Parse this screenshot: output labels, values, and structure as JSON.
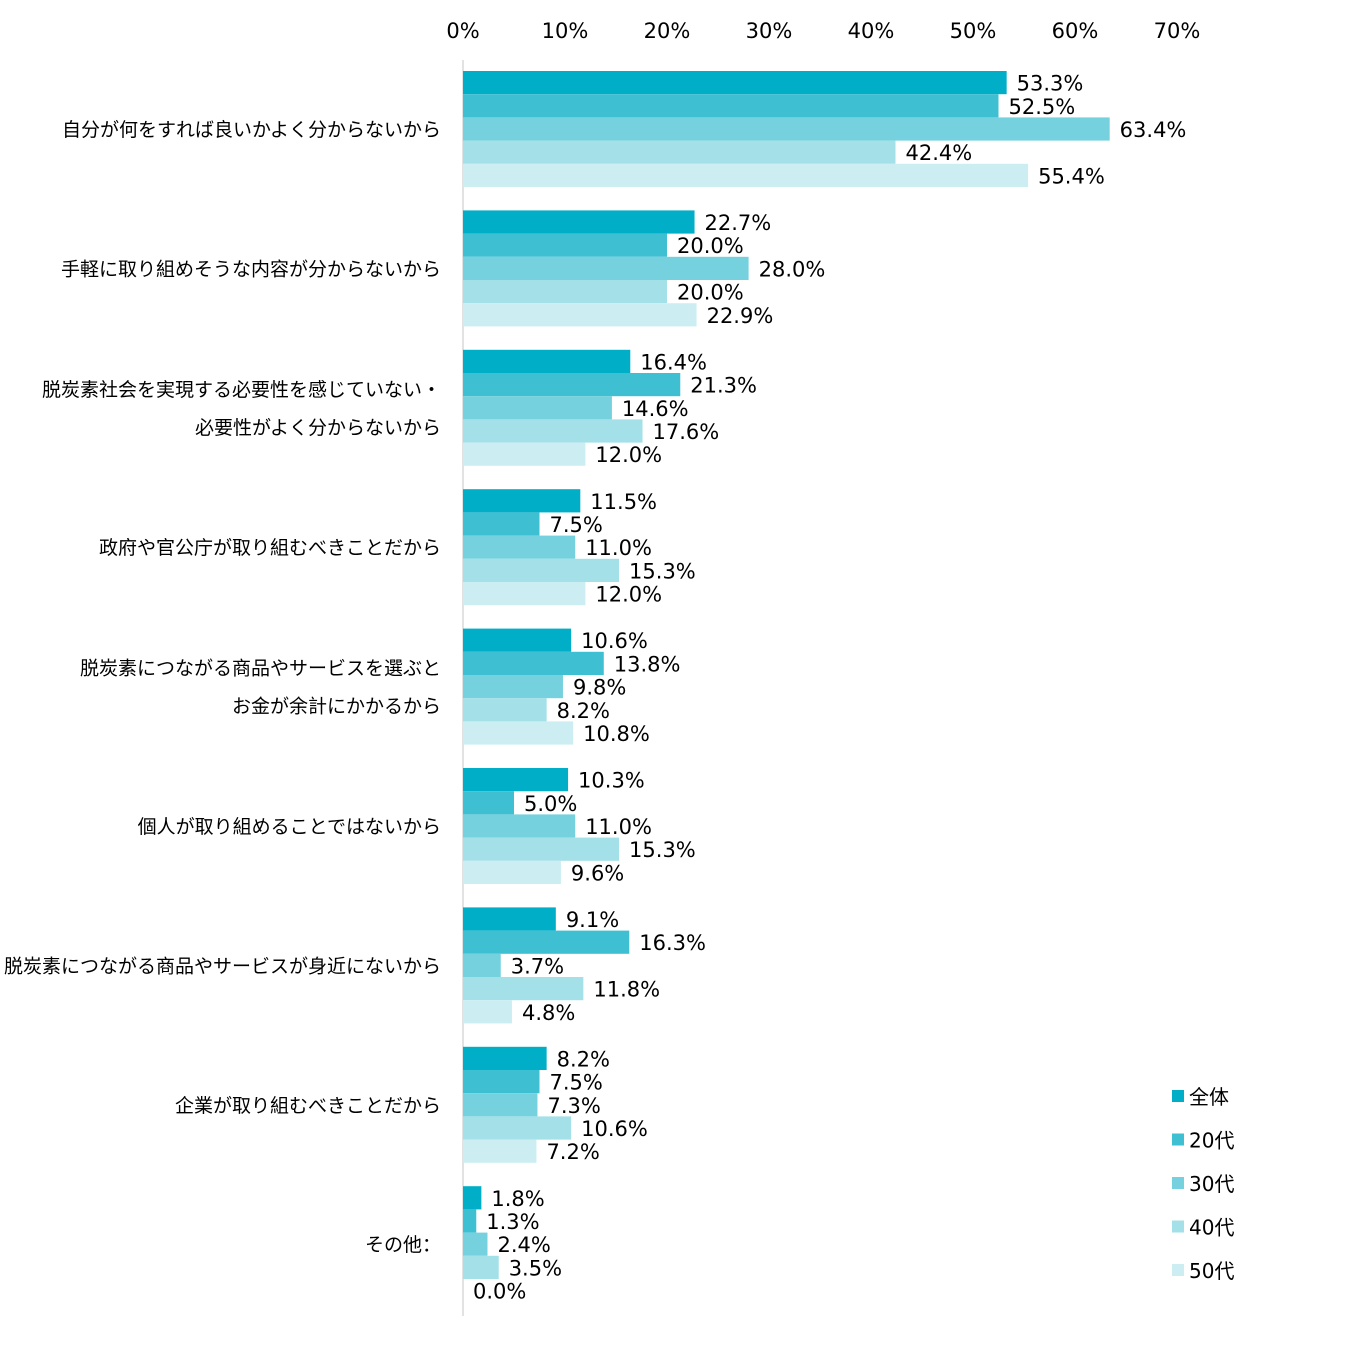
{
  "chart_data": {
    "type": "bar",
    "orientation": "horizontal",
    "xlim": [
      0,
      70
    ],
    "x_ticks": [
      "0%",
      "10%",
      "20%",
      "30%",
      "40%",
      "50%",
      "60%",
      "70%"
    ],
    "tick_values": [
      0,
      10,
      20,
      30,
      40,
      50,
      60,
      70
    ],
    "grid": false,
    "legend_position": "bottom-right",
    "categories": [
      [
        "自分が何をすれば良いかよく分からないから"
      ],
      [
        "手軽に取り組めそうな内容が分からないから"
      ],
      [
        "脱炭素社会を実現する必要性を感じていない・",
        "必要性がよく分からないから"
      ],
      [
        "政府や官公庁が取り組むべきことだから"
      ],
      [
        "脱炭素につながる商品やサービスを選ぶと",
        "お金が余計にかかるから"
      ],
      [
        "個人が取り組めることではないから"
      ],
      [
        "脱炭素につながる商品やサービスが身近にないから"
      ],
      [
        "企業が取り組むべきことだから"
      ],
      [
        "その他："
      ]
    ],
    "series": [
      {
        "name": "全体",
        "color": "#00AEC7",
        "values": [
          53.3,
          22.7,
          16.4,
          11.5,
          10.6,
          10.3,
          9.1,
          8.2,
          1.8
        ],
        "labels": [
          "53.3%",
          "22.7%",
          "16.4%",
          "11.5%",
          "10.6%",
          "10.3%",
          "9.1%",
          "8.2%",
          "1.8%"
        ]
      },
      {
        "name": "20代",
        "color": "#3FBFD2",
        "values": [
          52.5,
          20.0,
          21.3,
          7.5,
          13.8,
          5.0,
          16.3,
          7.5,
          1.3
        ],
        "labels": [
          "52.5%",
          "20.0%",
          "21.3%",
          "7.5%",
          "13.8%",
          "5.0%",
          "16.3%",
          "7.5%",
          "1.3%"
        ]
      },
      {
        "name": "30代",
        "color": "#75D1DE",
        "values": [
          63.4,
          28.0,
          14.6,
          11.0,
          9.8,
          11.0,
          3.7,
          7.3,
          2.4
        ],
        "labels": [
          "63.4%",
          "28.0%",
          "14.6%",
          "11.0%",
          "9.8%",
          "11.0%",
          "3.7%",
          "7.3%",
          "2.4%"
        ]
      },
      {
        "name": "40代",
        "color": "#A3E0E8",
        "values": [
          42.4,
          20.0,
          17.6,
          15.3,
          8.2,
          15.3,
          11.8,
          10.6,
          3.5
        ],
        "labels": [
          "42.4%",
          "20.0%",
          "17.6%",
          "15.3%",
          "8.2%",
          "15.3%",
          "11.8%",
          "10.6%",
          "3.5%"
        ]
      },
      {
        "name": "50代",
        "color": "#CCEEF2",
        "values": [
          55.4,
          22.9,
          12.0,
          12.0,
          10.8,
          9.6,
          4.8,
          7.2,
          0.0
        ],
        "labels": [
          "55.4%",
          "22.9%",
          "12.0%",
          "12.0%",
          "10.8%",
          "9.6%",
          "4.8%",
          "7.2%",
          "0.0%"
        ]
      }
    ],
    "axis_color": "#D9D9D9"
  }
}
